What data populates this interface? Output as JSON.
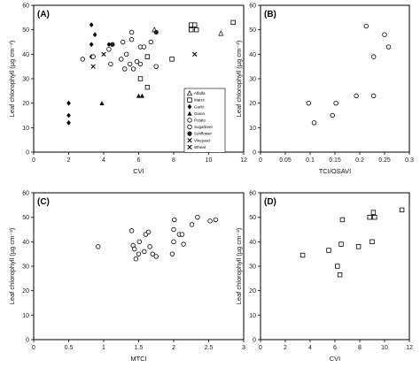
{
  "chart_data": [
    {
      "type": "scatter",
      "panel_label": "(A)",
      "xlabel": "CVI",
      "ylabel": "Leaf chlorophyll (µg cm⁻²)",
      "xlim": [
        0,
        12
      ],
      "ylim": [
        0,
        60
      ],
      "xticks": [
        "0",
        "2",
        "4",
        "6",
        "8",
        "10",
        "12"
      ],
      "yticks": [
        "0",
        "10",
        "20",
        "30",
        "40",
        "50",
        "60"
      ],
      "legend_position": "right",
      "series": [
        {
          "name": "Alfalfa",
          "marker": "triangle-open",
          "points": [
            [
              6.9,
              50
            ],
            [
              10.7,
              48.5
            ]
          ]
        },
        {
          "name": "Maize",
          "marker": "square-open",
          "points": [
            [
              6.1,
              30
            ],
            [
              6.5,
              26.5
            ],
            [
              6.5,
              39
            ],
            [
              7.9,
              38
            ],
            [
              9.0,
              52
            ],
            [
              9.0,
              50
            ],
            [
              9.2,
              52
            ],
            [
              9.3,
              50
            ],
            [
              11.4,
              53
            ]
          ]
        },
        {
          "name": "Garlic",
          "marker": "diamond-filled",
          "points": [
            [
              2.0,
              20
            ],
            [
              2.0,
              15
            ],
            [
              2.0,
              12
            ],
            [
              3.3,
              52
            ],
            [
              3.3,
              44
            ],
            [
              3.3,
              39
            ],
            [
              3.5,
              48
            ],
            [
              4.3,
              44
            ]
          ]
        },
        {
          "name": "Onion",
          "marker": "triangle-filled",
          "points": [
            [
              3.9,
              20
            ],
            [
              6.0,
              23
            ],
            [
              6.2,
              23
            ]
          ]
        },
        {
          "name": "Potato",
          "marker": "circle-open",
          "points": [
            [
              2.8,
              38
            ],
            [
              3.4,
              39
            ],
            [
              4.4,
              36
            ],
            [
              5.0,
              38
            ],
            [
              5.2,
              34
            ],
            [
              5.3,
              40
            ],
            [
              5.5,
              36
            ],
            [
              5.7,
              34
            ],
            [
              6.1,
              43
            ],
            [
              6.3,
              43
            ]
          ]
        },
        {
          "name": "Sugarbeet",
          "marker": "circle-open",
          "points": [
            [
              4.3,
              42
            ],
            [
              5.1,
              45
            ],
            [
              5.6,
              49
            ],
            [
              5.6,
              46
            ],
            [
              5.9,
              37
            ],
            [
              6.1,
              36
            ],
            [
              6.7,
              45
            ],
            [
              7.0,
              35
            ]
          ]
        },
        {
          "name": "Sunflower",
          "marker": "circle-filled",
          "points": [
            [
              4.5,
              44
            ],
            [
              7.0,
              49
            ]
          ]
        },
        {
          "name": "Vineyard",
          "marker": "x",
          "points": [
            [
              3.4,
              35
            ],
            [
              4.0,
              40
            ],
            [
              9.2,
              40
            ]
          ]
        },
        {
          "name": "Wheat",
          "marker": "x",
          "points": []
        }
      ]
    },
    {
      "type": "scatter",
      "panel_label": "(B)",
      "xlabel": "TCI/OSAVI",
      "ylabel": "Leaf chlorophyll (µg cm⁻²)",
      "xlim": [
        0,
        0.3
      ],
      "ylim": [
        0,
        60
      ],
      "xticks": [
        "0",
        "0.05",
        "0.1",
        "0.15",
        "0.2",
        "0.25",
        "0.3"
      ],
      "yticks": [
        "0",
        "10",
        "20",
        "30",
        "40",
        "50",
        "60"
      ],
      "series": [
        {
          "marker": "circle-open",
          "points": [
            [
              0.097,
              20
            ],
            [
              0.108,
              12
            ],
            [
              0.145,
              15
            ],
            [
              0.152,
              20
            ],
            [
              0.193,
              23
            ],
            [
              0.213,
              51.5
            ],
            [
              0.228,
              23
            ],
            [
              0.228,
              39
            ],
            [
              0.25,
              48
            ],
            [
              0.258,
              43
            ]
          ]
        }
      ]
    },
    {
      "type": "scatter",
      "panel_label": "(C)",
      "xlabel": "MTCI",
      "ylabel": "Leaf chlorophyll (µg cm⁻²)",
      "xlim": [
        0,
        3
      ],
      "ylim": [
        0,
        60
      ],
      "xticks": [
        "0",
        "0.5",
        "1",
        "1.5",
        "2",
        "2.5",
        "3"
      ],
      "yticks": [
        "0",
        "10",
        "20",
        "30",
        "40",
        "50",
        "60"
      ],
      "series": [
        {
          "marker": "circle-open",
          "points": [
            [
              0.92,
              38
            ],
            [
              1.4,
              44.5
            ],
            [
              1.42,
              38.5
            ],
            [
              1.44,
              37
            ],
            [
              1.46,
              33
            ],
            [
              1.5,
              35
            ],
            [
              1.51,
              40
            ],
            [
              1.58,
              36
            ],
            [
              1.6,
              43
            ],
            [
              1.64,
              44
            ],
            [
              1.66,
              38
            ],
            [
              1.7,
              35
            ],
            [
              1.75,
              34
            ],
            [
              1.98,
              35
            ],
            [
              2.0,
              40
            ],
            [
              2.0,
              45
            ],
            [
              2.01,
              49
            ],
            [
              2.08,
              43
            ],
            [
              2.12,
              43
            ],
            [
              2.14,
              39
            ],
            [
              2.26,
              47
            ],
            [
              2.34,
              50
            ],
            [
              2.52,
              48.5
            ],
            [
              2.6,
              49
            ]
          ]
        }
      ]
    },
    {
      "type": "scatter",
      "panel_label": "(D)",
      "xlabel": "CVI",
      "ylabel": "Leaf chlorophyll (µg cm⁻²)",
      "xlim": [
        0,
        12
      ],
      "ylim": [
        0,
        60
      ],
      "xticks": [
        "0",
        "2",
        "4",
        "6",
        "8",
        "10",
        "12"
      ],
      "yticks": [
        "0",
        "10",
        "20",
        "30",
        "40",
        "50",
        "60"
      ],
      "series": [
        {
          "marker": "square-open",
          "points": [
            [
              3.4,
              34.5
            ],
            [
              5.5,
              36.5
            ],
            [
              6.2,
              30
            ],
            [
              6.4,
              26.5
            ],
            [
              6.5,
              39
            ],
            [
              6.6,
              49
            ],
            [
              7.9,
              38
            ],
            [
              8.8,
              50
            ],
            [
              9.0,
              40
            ],
            [
              9.1,
              52
            ],
            [
              9.2,
              50
            ],
            [
              11.4,
              53
            ]
          ]
        }
      ]
    }
  ]
}
